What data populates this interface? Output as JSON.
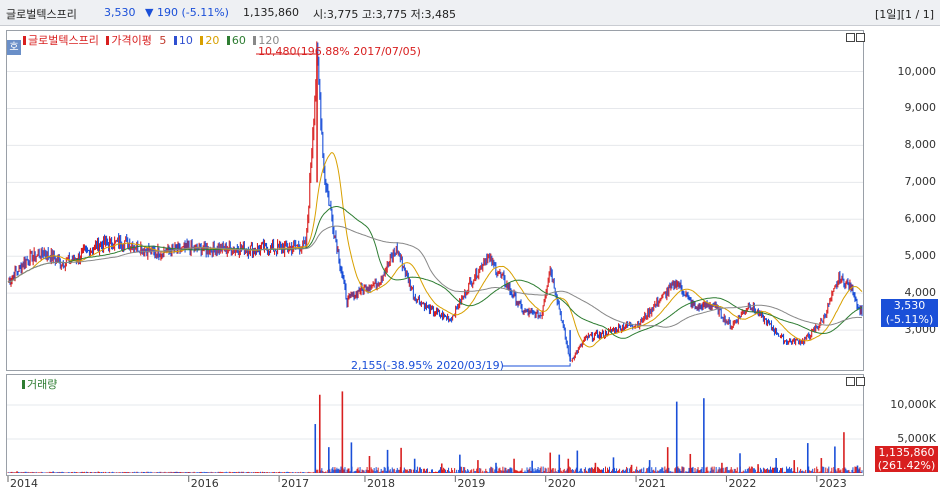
{
  "header": {
    "stock_name": "글로벌텍스프리",
    "price": "3,530",
    "change": "▼ 190 (-5.11%)",
    "volume": "1,135,860",
    "ohl": "시:3,775 고:3,775 저:3,485",
    "period": "[1일][1 / 1]"
  },
  "legend": {
    "name": "글로벌텍스프리",
    "ma_label": "가격이평",
    "ma5": "5",
    "ma10": "10",
    "ma20": "20",
    "ma60": "60",
    "ma120": "120",
    "tag": "호",
    "volume_label": "거래량"
  },
  "annotations": {
    "high": "10,480(196.88% 2017/07/05)",
    "low": "2,155(-38.95% 2020/03/19)"
  },
  "last_price_tag": {
    "price": "3,530",
    "pct": "(-5.11%)"
  },
  "last_volume_tag": {
    "volume": "1,135,860",
    "pct": "(261.42%)"
  },
  "colors": {
    "up": "#d81f1f",
    "down": "#1a4fd8",
    "ma5": "#c0392b",
    "ma10": "#2e4fd0",
    "ma20": "#d8a000",
    "ma60": "#2e7d32",
    "ma120": "#888888"
  },
  "chart_data": [
    {
      "type": "line",
      "title": "글로벌텍스프리 가격",
      "x_ticks": [
        "2014",
        "2016",
        "2017",
        "2018",
        "2019",
        "2020",
        "2021",
        "2022",
        "2023"
      ],
      "y_ticks": [
        "3,000",
        "4,000",
        "5,000",
        "6,000",
        "7,000",
        "8,000",
        "9,000",
        "10,000"
      ],
      "ylim": [
        2000,
        10800
      ],
      "series": [
        {
          "name": "가격",
          "x": [
            2014.0,
            2014.2,
            2014.4,
            2014.6,
            2014.8,
            2015.0,
            2015.3,
            2015.6,
            2016.0,
            2016.5,
            2017.0,
            2017.3,
            2017.42,
            2017.5,
            2017.6,
            2017.75,
            2017.9,
            2018.1,
            2018.3,
            2018.5,
            2018.7,
            2018.9,
            2019.1,
            2019.3,
            2019.5,
            2019.7,
            2019.9,
            2020.0,
            2020.1,
            2020.22,
            2020.4,
            2020.6,
            2020.8,
            2021.0,
            2021.2,
            2021.4,
            2021.6,
            2021.8,
            2022.0,
            2022.2,
            2022.4,
            2022.6,
            2022.8,
            2023.0,
            2023.2,
            2023.35,
            2023.42
          ],
          "values": [
            4300,
            4900,
            5100,
            4800,
            5000,
            5300,
            5400,
            5100,
            5200,
            5200,
            5200,
            5300,
            10480,
            7200,
            5800,
            3800,
            4100,
            4300,
            5200,
            3900,
            3500,
            3300,
            4200,
            5000,
            4300,
            3500,
            3400,
            4700,
            3600,
            2155,
            2800,
            2900,
            3100,
            3200,
            3800,
            4300,
            3600,
            3700,
            3100,
            3700,
            3200,
            2700,
            2700,
            3200,
            4400,
            4100,
            3530
          ]
        }
      ]
    },
    {
      "type": "bar",
      "title": "거래량",
      "y_ticks": [
        "5,000K",
        "10,000K"
      ],
      "ylim": [
        0,
        12500
      ],
      "series": [
        {
          "name": "거래량 (K)",
          "x": [
            2014.1,
            2014.5,
            2015.0,
            2015.5,
            2016.0,
            2016.5,
            2017.0,
            2017.4,
            2017.45,
            2017.55,
            2017.7,
            2017.8,
            2018.0,
            2018.2,
            2018.35,
            2018.5,
            2018.8,
            2019.0,
            2019.2,
            2019.4,
            2019.6,
            2019.8,
            2020.0,
            2020.1,
            2020.2,
            2020.3,
            2020.5,
            2020.7,
            2020.9,
            2021.1,
            2021.3,
            2021.4,
            2021.55,
            2021.7,
            2021.9,
            2022.1,
            2022.3,
            2022.5,
            2022.7,
            2022.85,
            2023.0,
            2023.15,
            2023.25,
            2023.4
          ],
          "values": [
            250,
            220,
            200,
            150,
            130,
            120,
            140,
            7200,
            11500,
            3800,
            12000,
            4500,
            2500,
            3400,
            3700,
            2100,
            1400,
            2700,
            1900,
            1500,
            2100,
            1800,
            3000,
            2700,
            2100,
            3300,
            1500,
            2300,
            1200,
            1900,
            3800,
            10500,
            2800,
            11000,
            1500,
            2900,
            1300,
            2200,
            1900,
            4400,
            2200,
            3900,
            6000,
            1100
          ]
        }
      ]
    }
  ]
}
